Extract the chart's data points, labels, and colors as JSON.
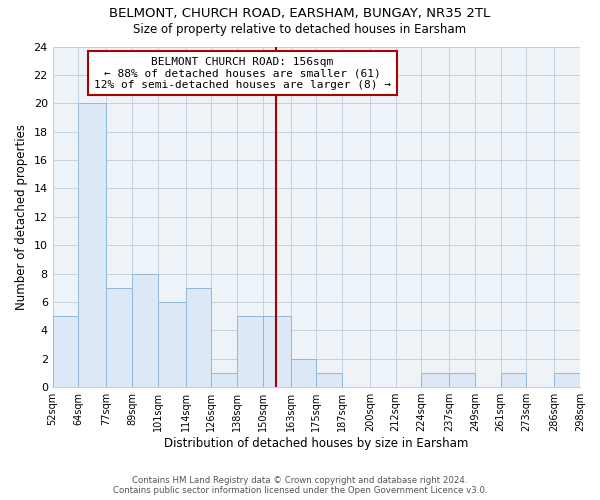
{
  "title": "BELMONT, CHURCH ROAD, EARSHAM, BUNGAY, NR35 2TL",
  "subtitle": "Size of property relative to detached houses in Earsham",
  "xlabel": "Distribution of detached houses by size in Earsham",
  "ylabel": "Number of detached properties",
  "bin_edges": [
    52,
    64,
    77,
    89,
    101,
    114,
    126,
    138,
    150,
    163,
    175,
    187,
    200,
    212,
    224,
    237,
    249,
    261,
    273,
    286,
    298
  ],
  "bin_labels": [
    "52sqm",
    "64sqm",
    "77sqm",
    "89sqm",
    "101sqm",
    "114sqm",
    "126sqm",
    "138sqm",
    "150sqm",
    "163sqm",
    "175sqm",
    "187sqm",
    "200sqm",
    "212sqm",
    "224sqm",
    "237sqm",
    "249sqm",
    "261sqm",
    "273sqm",
    "286sqm",
    "298sqm"
  ],
  "counts": [
    5,
    20,
    7,
    8,
    6,
    7,
    1,
    5,
    5,
    2,
    1,
    0,
    0,
    0,
    1,
    1,
    0,
    1,
    0,
    1
  ],
  "bar_color": "#dce8f5",
  "bar_edgecolor": "#90b8d8",
  "property_size": 156,
  "property_line_color": "#aa0000",
  "annotation_title": "BELMONT CHURCH ROAD: 156sqm",
  "annotation_line1": "← 88% of detached houses are smaller (61)",
  "annotation_line2": "12% of semi-detached houses are larger (8) →",
  "annotation_box_edgecolor": "#aa0000",
  "ylim": [
    0,
    24
  ],
  "yticks": [
    0,
    2,
    4,
    6,
    8,
    10,
    12,
    14,
    16,
    18,
    20,
    22,
    24
  ],
  "footer_line1": "Contains HM Land Registry data © Crown copyright and database right 2024.",
  "footer_line2": "Contains public sector information licensed under the Open Government Licence v3.0.",
  "background_color": "#ffffff",
  "plot_bg_color": "#eef3f8",
  "grid_color": "#c5d0dc"
}
